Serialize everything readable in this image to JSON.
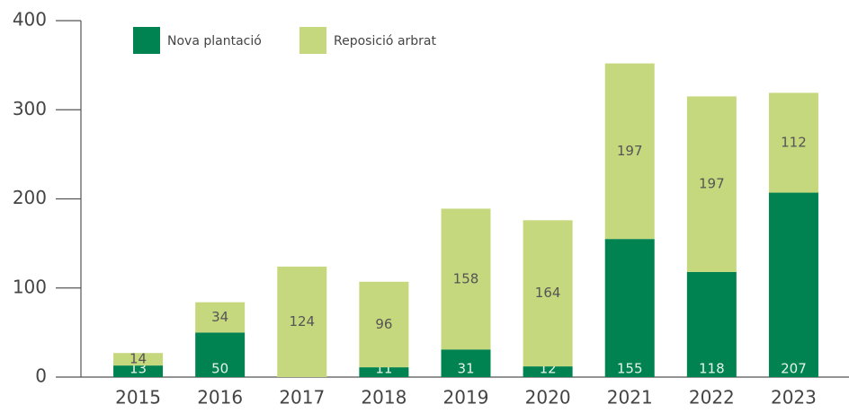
{
  "chart_data": {
    "type": "stacked_bar",
    "categories": [
      "2015",
      "2016",
      "2017",
      "2018",
      "2019",
      "2020",
      "2021",
      "2022",
      "2023"
    ],
    "series": [
      {
        "name": "Nova plantació",
        "color": "#008350",
        "values": [
          13,
          50,
          null,
          11,
          31,
          12,
          155,
          118,
          207
        ]
      },
      {
        "name": "Reposició arbrat",
        "color": "#c5d87d",
        "values": [
          14,
          34,
          124,
          96,
          158,
          164,
          197,
          197,
          112
        ]
      }
    ],
    "ylim": [
      0,
      400
    ],
    "yticks": [
      0,
      100,
      200,
      300,
      400
    ]
  }
}
